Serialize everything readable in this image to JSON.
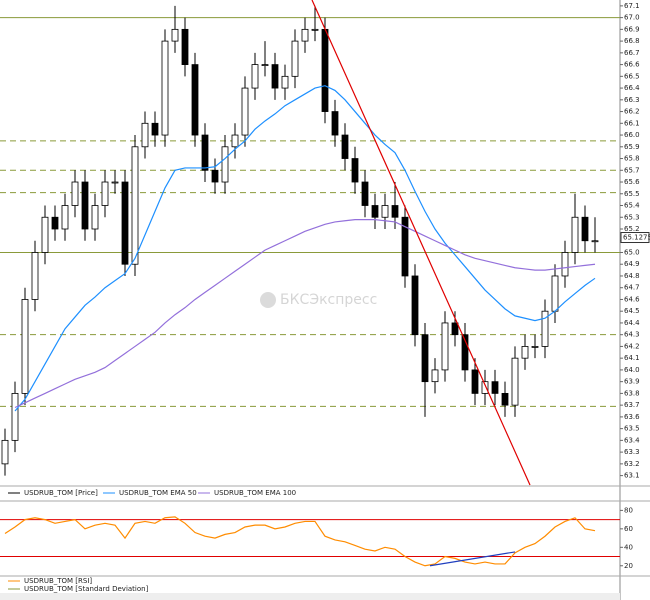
{
  "chart_data": [
    {
      "type": "candlestick",
      "series": [
        {
          "name": "USDRUB_TOM [Price]",
          "color": "#000000",
          "open": [
            63.2,
            63.4,
            63.8,
            64.6,
            65.0,
            65.3,
            65.2,
            65.4,
            65.6,
            65.2,
            65.4,
            65.6,
            65.6,
            64.9,
            65.9,
            66.1,
            66.0,
            66.8,
            66.9,
            66.6,
            66.0,
            65.7,
            65.6,
            65.9,
            66.0,
            66.4,
            66.6,
            66.6,
            66.4,
            66.5,
            66.8,
            66.9,
            66.9,
            66.2,
            66.0,
            65.8,
            65.6,
            65.4,
            65.3,
            65.4,
            65.3,
            64.8,
            64.3,
            63.9,
            64.0,
            64.4,
            64.3,
            64.0,
            63.8,
            63.9,
            63.8,
            63.7,
            64.1,
            64.2,
            64.2,
            64.5,
            64.8,
            65.0,
            65.3,
            65.1
          ],
          "high": [
            63.5,
            63.9,
            64.7,
            65.1,
            65.4,
            65.4,
            65.5,
            65.7,
            65.7,
            65.5,
            65.7,
            65.7,
            65.7,
            66.0,
            66.2,
            66.2,
            66.9,
            67.1,
            67.0,
            66.7,
            66.1,
            65.8,
            66.0,
            66.1,
            66.5,
            66.7,
            66.8,
            66.7,
            66.6,
            66.9,
            67.0,
            67.1,
            67.0,
            66.3,
            66.1,
            65.9,
            65.7,
            65.5,
            65.5,
            65.6,
            65.4,
            64.9,
            64.4,
            64.1,
            64.5,
            64.5,
            64.4,
            64.1,
            64.0,
            64.0,
            63.9,
            64.2,
            64.3,
            64.3,
            64.6,
            64.9,
            65.1,
            65.5,
            65.4,
            65.3
          ],
          "low": [
            63.1,
            63.3,
            63.7,
            64.5,
            64.9,
            65.1,
            65.1,
            65.3,
            65.1,
            65.1,
            65.3,
            65.5,
            64.8,
            64.8,
            65.8,
            65.9,
            65.9,
            66.7,
            66.5,
            65.9,
            65.6,
            65.5,
            65.5,
            65.8,
            65.9,
            66.3,
            66.5,
            66.3,
            66.3,
            66.4,
            66.7,
            66.8,
            66.1,
            65.9,
            65.7,
            65.5,
            65.3,
            65.2,
            65.2,
            65.2,
            64.7,
            64.2,
            63.6,
            63.8,
            63.9,
            64.2,
            63.9,
            63.7,
            63.7,
            63.7,
            63.6,
            63.6,
            64.0,
            64.1,
            64.1,
            64.4,
            64.7,
            64.9,
            65.0,
            65.0
          ],
          "close": [
            63.4,
            63.8,
            64.6,
            65.0,
            65.3,
            65.2,
            65.4,
            65.6,
            65.2,
            65.4,
            65.6,
            65.6,
            64.9,
            65.9,
            66.1,
            66.0,
            66.8,
            66.9,
            66.6,
            66.0,
            65.7,
            65.6,
            65.9,
            66.0,
            66.4,
            66.6,
            66.6,
            66.4,
            66.5,
            66.8,
            66.9,
            66.9,
            66.2,
            66.0,
            65.8,
            65.6,
            65.4,
            65.3,
            65.4,
            65.3,
            64.8,
            64.3,
            63.9,
            64.0,
            64.4,
            64.3,
            64.0,
            63.8,
            63.9,
            63.8,
            63.7,
            64.1,
            64.2,
            64.2,
            64.5,
            64.8,
            65.0,
            65.3,
            65.1,
            65.1
          ]
        },
        {
          "name": "USDRUB_TOM EMA 50",
          "color": "#1e90ff",
          "values": [
            null,
            63.65,
            63.75,
            63.9,
            64.05,
            64.2,
            64.35,
            64.45,
            64.55,
            64.62,
            64.7,
            64.76,
            64.82,
            64.95,
            65.15,
            65.35,
            65.55,
            65.7,
            65.72,
            65.72,
            65.72,
            65.73,
            65.8,
            65.88,
            65.95,
            66.05,
            66.12,
            66.18,
            66.25,
            66.3,
            66.35,
            66.4,
            66.42,
            66.38,
            66.3,
            66.2,
            66.1,
            66.0,
            65.92,
            65.85,
            65.7,
            65.52,
            65.35,
            65.2,
            65.08,
            64.98,
            64.88,
            64.78,
            64.68,
            64.6,
            64.52,
            64.46,
            64.44,
            64.42,
            64.44,
            64.5,
            64.58,
            64.65,
            64.72,
            64.78
          ]
        },
        {
          "name": "USDRUB_TOM EMA 100",
          "color": "#9370db",
          "values": [
            null,
            63.68,
            63.72,
            63.76,
            63.8,
            63.84,
            63.88,
            63.92,
            63.95,
            63.98,
            64.02,
            64.08,
            64.14,
            64.2,
            64.26,
            64.32,
            64.4,
            64.47,
            64.53,
            64.6,
            64.66,
            64.72,
            64.78,
            64.84,
            64.9,
            64.96,
            65.02,
            65.06,
            65.1,
            65.14,
            65.18,
            65.21,
            65.24,
            65.26,
            65.27,
            65.28,
            65.28,
            65.28,
            65.27,
            65.26,
            65.22,
            65.18,
            65.14,
            65.1,
            65.06,
            65.02,
            64.98,
            64.95,
            64.93,
            64.91,
            64.89,
            64.87,
            64.86,
            64.85,
            64.85,
            64.86,
            64.87,
            64.88,
            64.89,
            64.9
          ]
        }
      ],
      "ylim": [
        63.02,
        67.15
      ],
      "yticks": [
        63.1,
        63.2,
        63.3,
        63.4,
        63.5,
        63.6,
        63.7,
        63.8,
        63.9,
        {
          "value": 64,
          "label": "64.0"
        },
        64.1,
        64.2,
        64.3,
        64.4,
        64.5,
        64.6,
        64.7,
        64.8,
        64.9,
        {
          "value": 65,
          "label": "65.0"
        },
        65.1,
        65.2,
        65.3,
        65.4,
        65.5,
        65.6,
        65.7,
        65.8,
        65.9,
        {
          "value": 66,
          "label": "66.0"
        },
        66.1,
        66.2,
        66.3,
        66.4,
        66.5,
        66.6,
        66.7,
        66.8,
        66.9,
        {
          "value": 67,
          "label": "67.0"
        },
        67.1
      ],
      "levels": [
        67.0,
        65.0
      ],
      "dashed_levels": [
        65.95,
        65.7,
        65.51,
        64.3,
        63.69
      ],
      "level_color": "#8a9a3a",
      "trendlines": [
        {
          "x": [
            30.7,
            52.5
          ],
          "y": [
            67.15,
            63.02
          ],
          "color": "#e00000"
        }
      ],
      "last_price": 65.1275,
      "watermark": "БКСЭкспресс"
    },
    {
      "type": "line",
      "series": [
        {
          "name": "USDRUB_TOM [RSI]",
          "color": "#ff8c00",
          "values": [
            55,
            62,
            70,
            72,
            70,
            66,
            68,
            70,
            60,
            64,
            66,
            64,
            50,
            66,
            68,
            66,
            72,
            73,
            66,
            56,
            52,
            50,
            54,
            56,
            62,
            64,
            64,
            60,
            62,
            66,
            68,
            68,
            52,
            48,
            46,
            42,
            38,
            36,
            40,
            38,
            30,
            24,
            20,
            22,
            30,
            28,
            24,
            22,
            24,
            22,
            22,
            34,
            40,
            44,
            52,
            62,
            68,
            72,
            60,
            58
          ]
        }
      ],
      "ylim": [
        10,
        88
      ],
      "yticks": [
        80,
        60,
        40,
        20
      ],
      "levels": [
        70,
        30
      ],
      "level_color": "#e00000",
      "trendlines": [
        {
          "x": [
            42.5,
            51
          ],
          "y": [
            20,
            35
          ],
          "color": "#1f3fbf"
        }
      ]
    },
    {
      "type": "legend",
      "series": [
        {
          "name": "USDRUB_TOM [Standard Deviation]",
          "color": "#8a9a3a"
        }
      ]
    }
  ]
}
